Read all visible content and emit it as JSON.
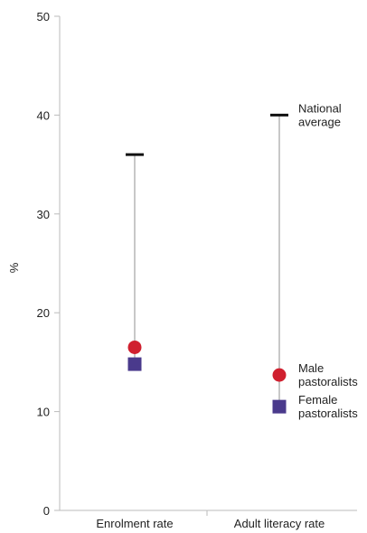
{
  "chart_data": {
    "type": "dot-range",
    "ylabel": "%",
    "ylim": [
      0,
      50
    ],
    "yticks": [
      "0",
      "10",
      "20",
      "30",
      "40",
      "50"
    ],
    "categories": [
      "Enrolment rate",
      "Adult literacy rate"
    ],
    "series": [
      {
        "name": "National average",
        "marker": "dash",
        "color": "#111111",
        "values": [
          36,
          40
        ]
      },
      {
        "name": "Male pastoralists",
        "marker": "circle",
        "color": "#d0202f",
        "values": [
          16.5,
          13.7
        ]
      },
      {
        "name": "Female pastoralists",
        "marker": "square",
        "color": "#4a3a8c",
        "values": [
          14.8,
          10.5
        ]
      }
    ],
    "annotations": {
      "national": [
        "National",
        "average"
      ],
      "male": [
        "Male",
        "pastoralists"
      ],
      "female": [
        "Female",
        "pastoralists"
      ]
    },
    "connector_color": "#c8c8c8",
    "axis_color": "#bbbbbb"
  }
}
